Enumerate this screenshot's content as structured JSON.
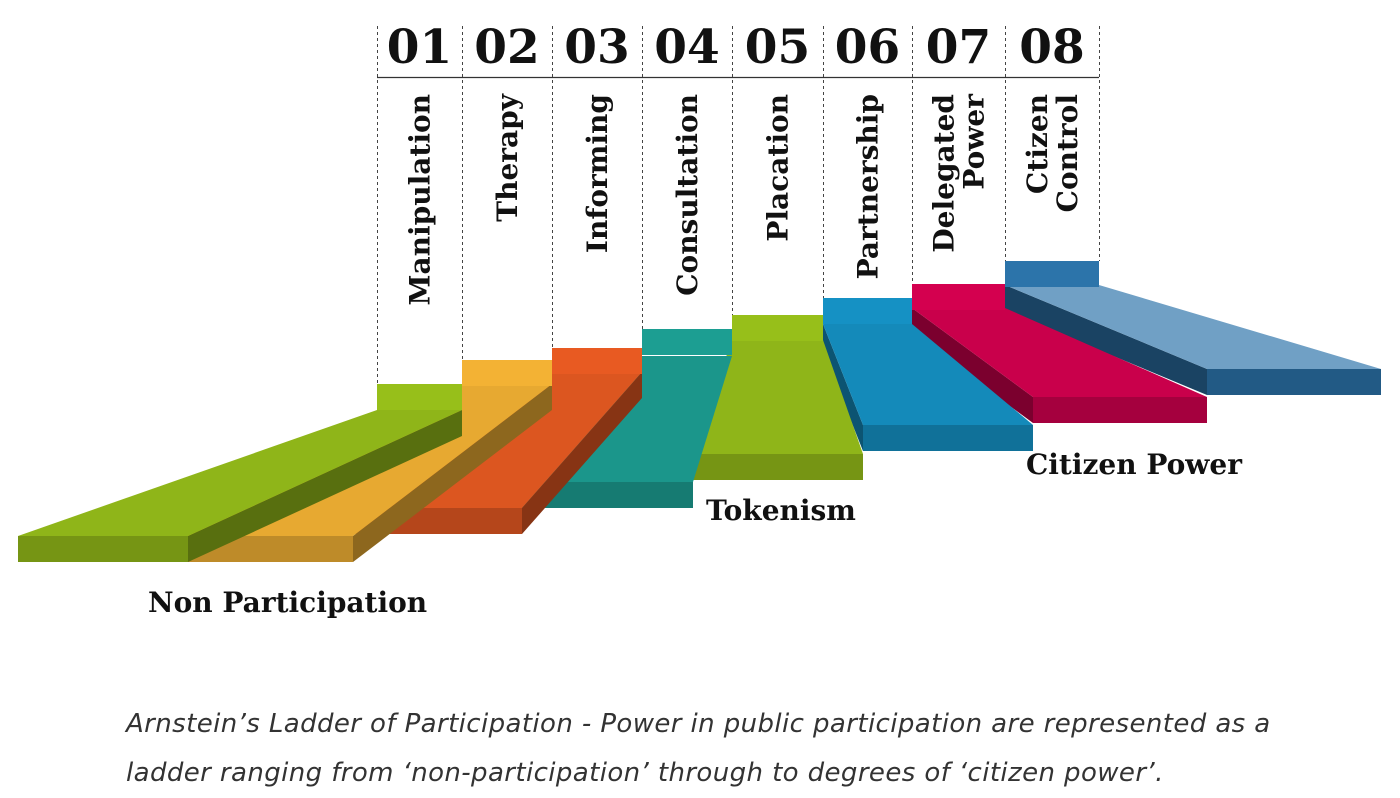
{
  "diagram": {
    "levels": [
      {
        "number": "01",
        "label": [
          "Manipulation"
        ],
        "color": "#97bf1a"
      },
      {
        "number": "02",
        "label": [
          "Therapy"
        ],
        "color": "#f3b234"
      },
      {
        "number": "03",
        "label": [
          "Informing"
        ],
        "color": "#e85a22"
      },
      {
        "number": "04",
        "label": [
          "Consultation"
        ],
        "color": "#1c9e92"
      },
      {
        "number": "05",
        "label": [
          "Placation"
        ],
        "color": "#97bf1a"
      },
      {
        "number": "06",
        "label": [
          "Partnership"
        ],
        "color": "#1591c4"
      },
      {
        "number": "07",
        "label": [
          "Delegated",
          "Power"
        ],
        "color": "#d4004f"
      },
      {
        "number": "08",
        "label": [
          "Ctizen",
          "Control"
        ],
        "color": "#2c74aa"
      }
    ],
    "groups": {
      "non_participation": "Non Participation",
      "tokenism": "Tokenism",
      "citizen_power": "Citizen Power"
    }
  },
  "caption": "Arnstein’s Ladder of Participation - Power in public participation are represented as a ladder ranging from ‘non-participation’ through to degrees of ‘citizen power’."
}
